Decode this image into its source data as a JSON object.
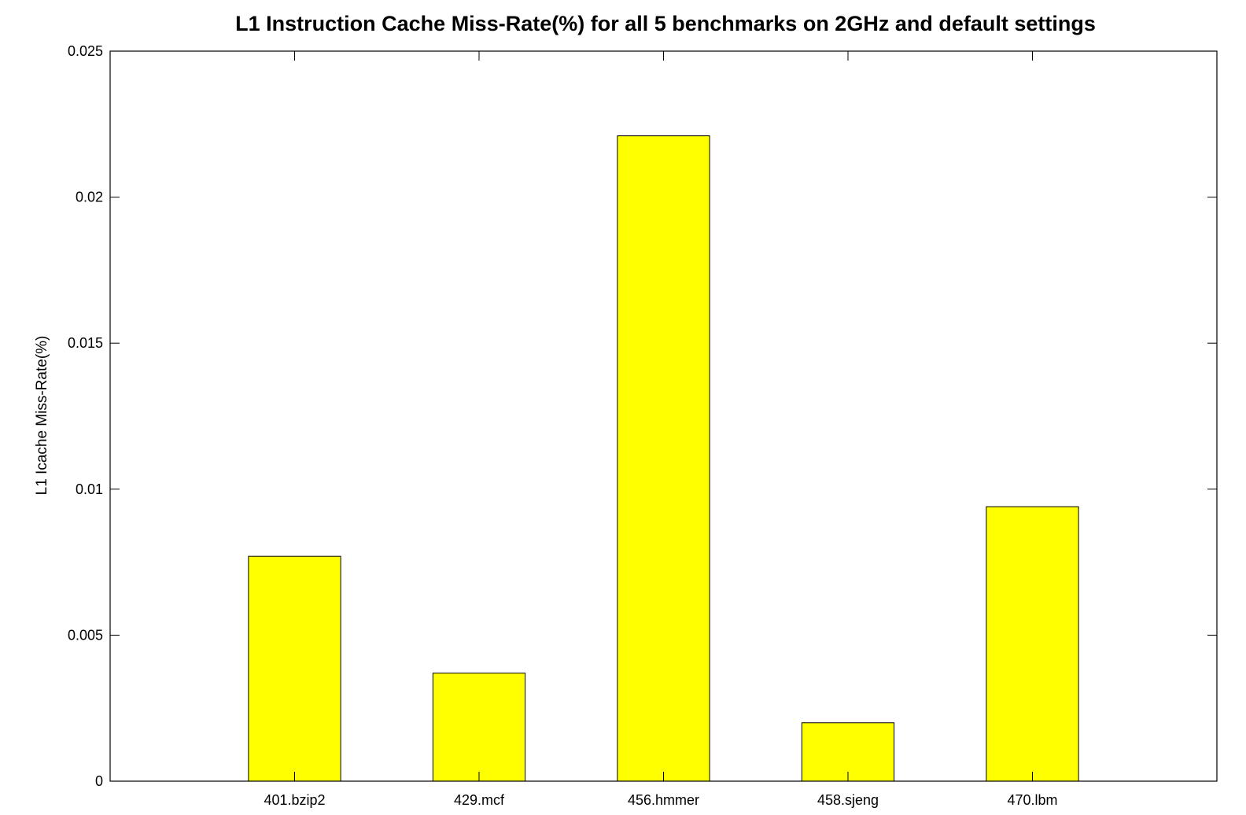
{
  "chart_data": {
    "type": "bar",
    "title": "L1 Instruction Cache Miss-Rate(%) for all 5 benchmarks on 2GHz and default settings",
    "xlabel": "",
    "ylabel": "L1 Icache Miss-Rate(%)",
    "categories": [
      "401.bzip2",
      "429.mcf",
      "456.hmmer",
      "458.sjeng",
      "470.lbm"
    ],
    "values": [
      0.0077,
      0.0037,
      0.0221,
      0.002,
      0.0094
    ],
    "ylim": [
      0,
      0.025
    ],
    "xlim": [
      0,
      6
    ],
    "yticks": [
      "0",
      "0.005",
      "0.01",
      "0.015",
      "0.02",
      "0.025"
    ],
    "grid": false,
    "legend": "none",
    "bar_color": "#ffff00",
    "edge_color": "#000000"
  }
}
